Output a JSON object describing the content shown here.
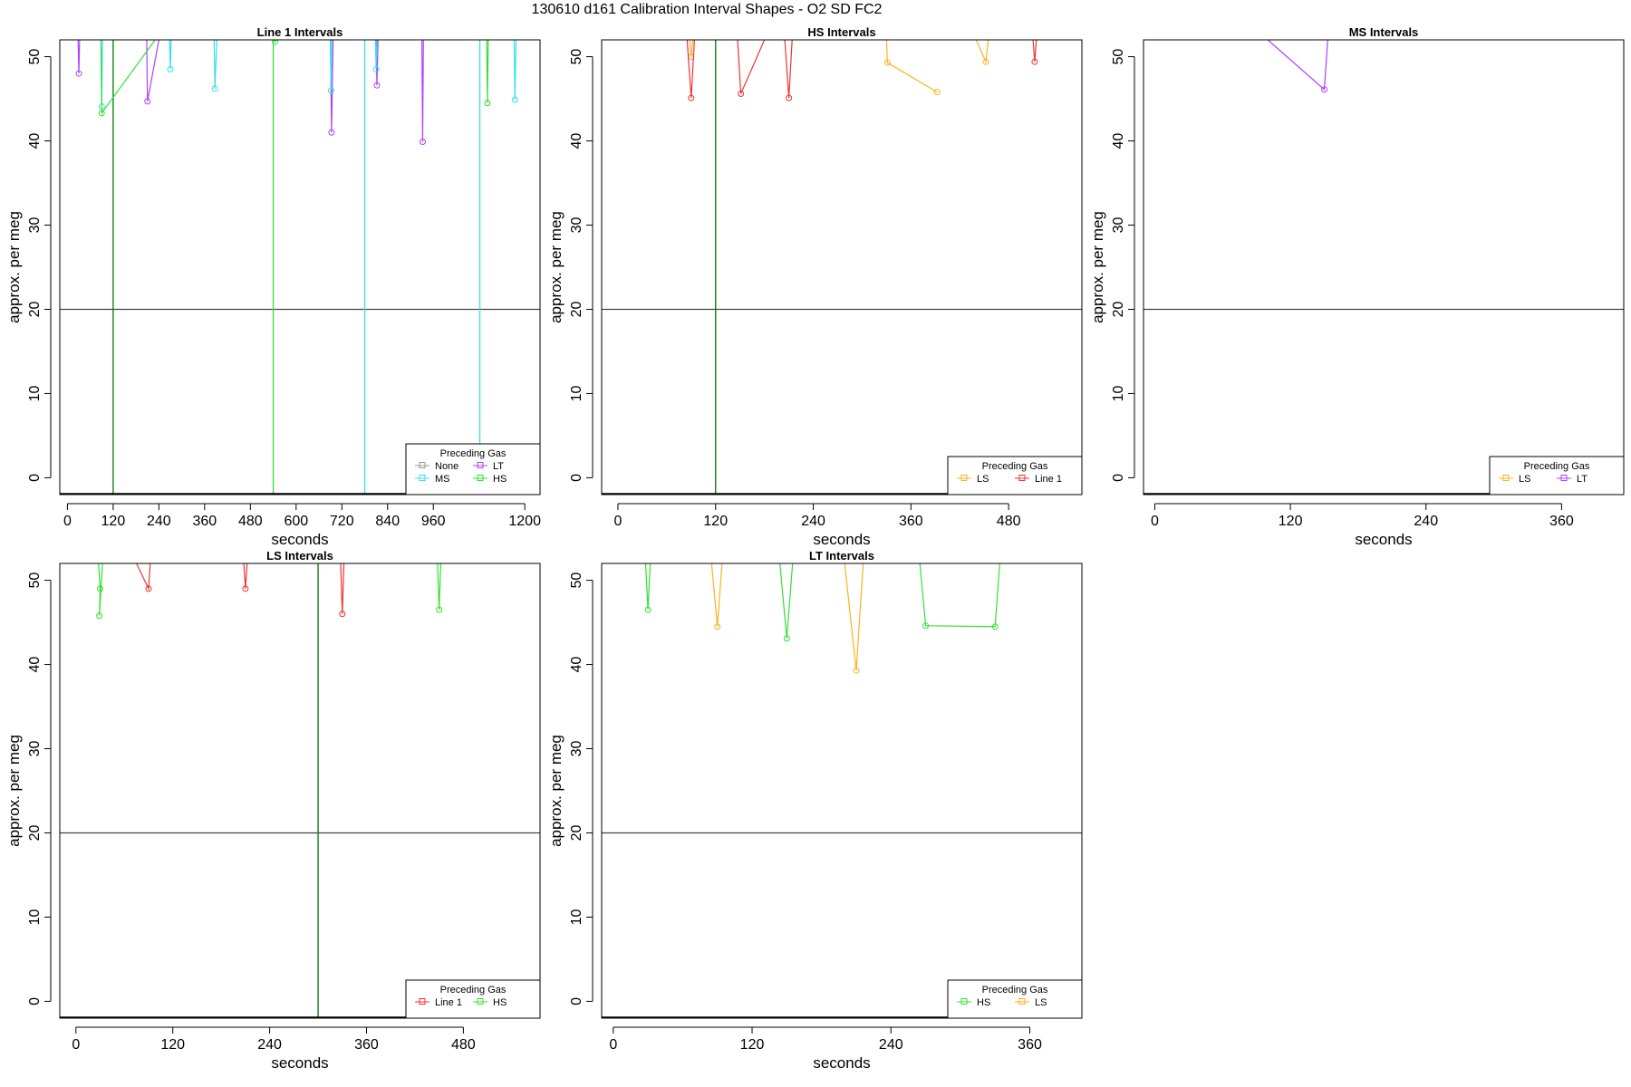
{
  "figure": {
    "title": "130610   d161   Calibration Interval Shapes - O2 SD FC2"
  },
  "colors": {
    "None": "#999999",
    "LT": "#b040ff",
    "MS": "#33e0e8",
    "HS": "#33e033",
    "LS": "#ffb020",
    "Line 1": "#ee3333",
    "hline": "#444444",
    "darkgreen": "#007700"
  },
  "chart_data": [
    {
      "type": "line",
      "title": "Line 1 Intervals",
      "xlabel": "seconds",
      "ylabel": "approx. per meg",
      "xlim": [
        -20,
        1240
      ],
      "ylim": [
        -2,
        52
      ],
      "xticks": [
        0,
        120,
        240,
        360,
        480,
        600,
        720,
        840,
        960,
        1200
      ],
      "yticks": [
        0,
        10,
        20,
        30,
        40,
        50
      ],
      "hline": 20,
      "legend": {
        "title": "Preceding Gas",
        "entries": [
          "None",
          "LT",
          "MS",
          "HS"
        ],
        "columns": 2,
        "placement": "bottom-right"
      },
      "vlines": [
        {
          "x": 120,
          "color": "darkgreen"
        },
        {
          "x": 540,
          "color": "HS"
        },
        {
          "x": 780,
          "color": "MS"
        },
        {
          "x": 1082,
          "color": "MS"
        }
      ],
      "series": [
        {
          "name": "LT",
          "segments": [
            [
              [
                28,
                52
              ],
              [
                30,
                48
              ],
              [
                32,
                52
              ]
            ],
            [
              [
                208,
                52
              ],
              [
                210,
                44.7
              ],
              [
                240,
                52
              ]
            ],
            [
              [
                690,
                52
              ],
              [
                693,
                41
              ],
              [
                697,
                52
              ]
            ],
            [
              [
                810,
                52
              ],
              [
                812,
                46.6
              ],
              [
                815,
                52
              ]
            ],
            [
              [
                930,
                52
              ],
              [
                932,
                39.9
              ],
              [
                934,
                52
              ]
            ]
          ]
        },
        {
          "name": "MS",
          "segments": [
            [
              [
                88,
                52
              ],
              [
                90,
                44.1
              ],
              [
                92,
                52
              ]
            ],
            [
              [
                268,
                52
              ],
              [
                270,
                48.5
              ],
              [
                272,
                52
              ]
            ],
            [
              [
                385,
                52
              ],
              [
                387,
                46.2
              ],
              [
                392,
                52
              ]
            ],
            [
              [
                690,
                52
              ],
              [
                692,
                46
              ],
              [
                694,
                52
              ]
            ],
            [
              [
                808,
                52
              ],
              [
                810,
                48.5
              ],
              [
                812,
                52
              ]
            ],
            [
              [
                1172,
                52
              ],
              [
                1174,
                44.9
              ],
              [
                1177,
                52
              ]
            ]
          ]
        },
        {
          "name": "HS",
          "segments": [
            [
              [
                88,
                52
              ],
              [
                90,
                43.3
              ],
              [
                230,
                52
              ]
            ],
            [
              [
                542,
                52
              ],
              [
                545,
                51.8
              ],
              [
                548,
                52
              ]
            ],
            [
              [
                1100,
                52
              ],
              [
                1102,
                44.5
              ],
              [
                1104,
                52
              ]
            ]
          ]
        }
      ]
    },
    {
      "type": "line",
      "title": "HS Intervals",
      "xlabel": "seconds",
      "ylabel": "approx. per meg",
      "xlim": [
        -20,
        570
      ],
      "ylim": [
        -2,
        52
      ],
      "xticks": [
        0,
        120,
        240,
        360,
        480
      ],
      "yticks": [
        0,
        10,
        20,
        30,
        40,
        50
      ],
      "hline": 20,
      "legend": {
        "title": "Preceding Gas",
        "entries": [
          "LS",
          "Line 1"
        ],
        "columns": 2,
        "placement": "bottom-right"
      },
      "vlines": [
        {
          "x": 120,
          "color": "darkgreen"
        }
      ],
      "series": [
        {
          "name": "LS",
          "segments": [
            [
              [
                88,
                52
              ],
              [
                90,
                50
              ],
              [
                92,
                52
              ]
            ],
            [
              [
                330,
                52
              ],
              [
                331,
                49.3
              ],
              [
                392,
                45.8
              ]
            ],
            [
              [
                440,
                52
              ],
              [
                452,
                49.4
              ],
              [
                455,
                52
              ]
            ]
          ]
        },
        {
          "name": "Line 1",
          "segments": [
            [
              [
                85,
                52
              ],
              [
                90,
                45.1
              ],
              [
                94,
                52
              ]
            ],
            [
              [
                147,
                52
              ],
              [
                151,
                45.6
              ],
              [
                180,
                52
              ]
            ],
            [
              [
                205,
                52
              ],
              [
                210,
                45.1
              ],
              [
                214,
                52
              ]
            ],
            [
              [
                510,
                52
              ],
              [
                512,
                49.4
              ],
              [
                514,
                52
              ]
            ]
          ]
        }
      ]
    },
    {
      "type": "line",
      "title": "MS Intervals",
      "xlabel": "seconds",
      "ylabel": "approx. per meg",
      "xlim": [
        -10,
        415
      ],
      "ylim": [
        -2,
        52
      ],
      "xticks": [
        0,
        120,
        240,
        360
      ],
      "yticks": [
        0,
        10,
        20,
        30,
        40,
        50
      ],
      "hline": 20,
      "legend": {
        "title": "Preceding Gas",
        "entries": [
          "LS",
          "LT"
        ],
        "columns": 2,
        "placement": "bottom-right"
      },
      "vlines": [],
      "series": [
        {
          "name": "LT",
          "segments": [
            [
              [
                100,
                52
              ],
              [
                150,
                46.1
              ],
              [
                153,
                52
              ]
            ]
          ]
        }
      ]
    },
    {
      "type": "line",
      "title": "LS Intervals",
      "xlabel": "seconds",
      "ylabel": "approx. per meg",
      "xlim": [
        -20,
        575
      ],
      "ylim": [
        -2,
        52
      ],
      "xticks": [
        0,
        120,
        240,
        360,
        480
      ],
      "yticks": [
        0,
        10,
        20,
        30,
        40,
        50
      ],
      "hline": 20,
      "legend": {
        "title": "Preceding Gas",
        "entries": [
          "Line 1",
          "HS"
        ],
        "columns": 2,
        "placement": "bottom-right"
      },
      "vlines": [
        {
          "x": 300,
          "color": "darkgreen"
        }
      ],
      "series": [
        {
          "name": "Line 1",
          "segments": [
            [
              [
                75,
                52
              ],
              [
                90,
                49
              ],
              [
                92,
                52
              ]
            ],
            [
              [
                208,
                52
              ],
              [
                210,
                49
              ],
              [
                212,
                52
              ]
            ],
            [
              [
                328,
                52
              ],
              [
                330,
                46
              ],
              [
                332,
                52
              ]
            ]
          ]
        },
        {
          "name": "HS",
          "segments": [
            [
              [
                28,
                52
              ],
              [
                30,
                49
              ],
              [
                29,
                45.8
              ],
              [
                33,
                52
              ]
            ],
            [
              [
                448,
                52
              ],
              [
                450,
                46.5
              ],
              [
                452,
                52
              ]
            ]
          ]
        }
      ]
    },
    {
      "type": "line",
      "title": "LT Intervals",
      "xlabel": "seconds",
      "ylabel": "approx. per meg",
      "xlim": [
        -10,
        405
      ],
      "ylim": [
        -2,
        52
      ],
      "xticks": [
        0,
        120,
        240,
        360
      ],
      "yticks": [
        0,
        10,
        20,
        30,
        40,
        50
      ],
      "hline": 20,
      "legend": {
        "title": "Preceding Gas",
        "entries": [
          "HS",
          "LS"
        ],
        "columns": 2,
        "placement": "bottom-right"
      },
      "vlines": [],
      "series": [
        {
          "name": "HS",
          "segments": [
            [
              [
                28,
                52
              ],
              [
                30,
                46.5
              ],
              [
                32,
                52
              ]
            ],
            [
              [
                144,
                52
              ],
              [
                150,
                43.1
              ],
              [
                155,
                52
              ]
            ],
            [
              [
                265,
                52
              ],
              [
                270,
                44.6
              ],
              [
                330,
                44.5
              ],
              [
                334,
                52
              ]
            ]
          ]
        },
        {
          "name": "LS",
          "segments": [
            [
              [
                85,
                52
              ],
              [
                90,
                44.5
              ],
              [
                94,
                52
              ]
            ],
            [
              [
                200,
                52
              ],
              [
                210,
                39.3
              ],
              [
                216,
                52
              ]
            ]
          ]
        }
      ]
    }
  ]
}
